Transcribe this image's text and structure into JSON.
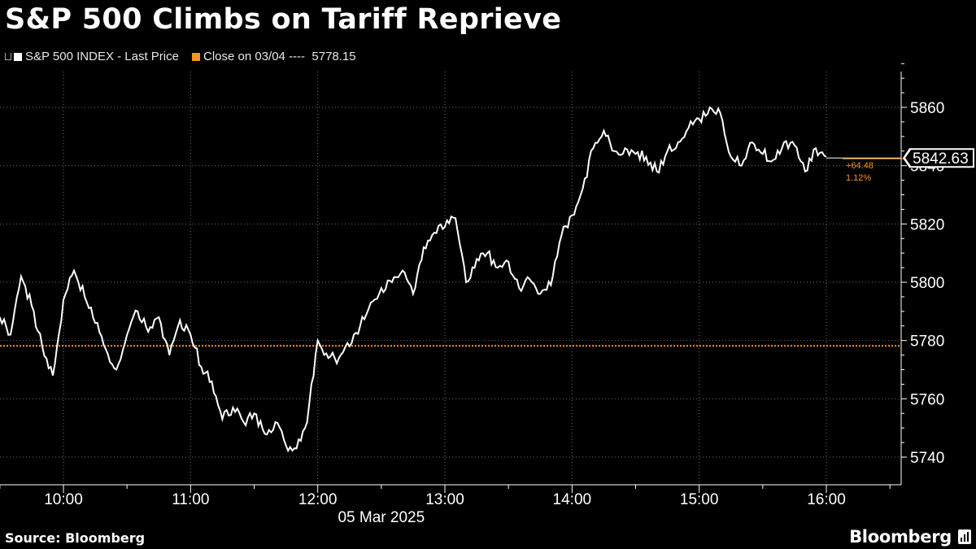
{
  "header": {
    "title": "S&P 500 Climbs on Tariff Reprieve"
  },
  "legend": {
    "series_label": "S&P 500 INDEX - Last Price",
    "close_label": "Close on 03/04",
    "close_dashes": "----",
    "close_value": "5778.15"
  },
  "footer": {
    "source": "Source: Bloomberg",
    "brand": "Bloomberg"
  },
  "colors": {
    "background": "#000000",
    "line": "#ffffff",
    "reference": "#f7941d",
    "grid": "#6e6e6e"
  },
  "chart_data": {
    "type": "line",
    "title": "S&P 500 Climbs on Tariff Reprieve",
    "date_label": "05 Mar 2025",
    "xlabel": "",
    "ylabel": "",
    "ylim": [
      5735,
      5880
    ],
    "xlim": [
      "09:30",
      "16:30"
    ],
    "y_ticks": [
      5740,
      5760,
      5780,
      5800,
      5820,
      5840,
      5860
    ],
    "x_ticks": [
      "10:00",
      "11:00",
      "12:00",
      "13:00",
      "14:00",
      "15:00",
      "16:00"
    ],
    "grid": true,
    "legend_position": "top-left",
    "reference_line": {
      "label": "Close on 03/04",
      "value": 5778.15
    },
    "last_value": {
      "value": 5842.63,
      "label": "5842.63",
      "change": "+64.48",
      "change_pct": "1.12%"
    },
    "series": [
      {
        "name": "S&P 500 INDEX - Last Price",
        "x": [
          "09:30",
          "09:35",
          "09:40",
          "09:45",
          "09:50",
          "09:55",
          "10:00",
          "10:05",
          "10:10",
          "10:15",
          "10:20",
          "10:25",
          "10:30",
          "10:35",
          "10:40",
          "10:45",
          "10:50",
          "10:55",
          "11:00",
          "11:05",
          "11:10",
          "11:15",
          "11:20",
          "11:25",
          "11:30",
          "11:35",
          "11:40",
          "11:45",
          "11:50",
          "11:55",
          "12:00",
          "12:05",
          "12:10",
          "12:15",
          "12:20",
          "12:25",
          "12:30",
          "12:35",
          "12:40",
          "12:45",
          "12:50",
          "12:55",
          "13:00",
          "13:05",
          "13:10",
          "13:15",
          "13:20",
          "13:25",
          "13:30",
          "13:35",
          "13:40",
          "13:45",
          "13:50",
          "13:55",
          "14:00",
          "14:05",
          "14:10",
          "14:15",
          "14:20",
          "14:25",
          "14:30",
          "14:35",
          "14:40",
          "14:45",
          "14:50",
          "14:55",
          "15:00",
          "15:05",
          "15:10",
          "15:15",
          "15:20",
          "15:25",
          "15:30",
          "15:35",
          "15:40",
          "15:45",
          "15:50",
          "15:55",
          "16:00"
        ],
        "y": [
          5788,
          5782,
          5802,
          5792,
          5778,
          5768,
          5794,
          5804,
          5795,
          5786,
          5777,
          5770,
          5782,
          5790,
          5783,
          5788,
          5775,
          5787,
          5782,
          5771,
          5766,
          5753,
          5757,
          5752,
          5755,
          5748,
          5752,
          5744,
          5743,
          5752,
          5780,
          5774,
          5774,
          5778,
          5785,
          5793,
          5798,
          5800,
          5804,
          5796,
          5812,
          5817,
          5819,
          5822,
          5800,
          5808,
          5810,
          5805,
          5807,
          5798,
          5801,
          5796,
          5799,
          5816,
          5823,
          5832,
          5846,
          5852,
          5845,
          5846,
          5844,
          5843,
          5838,
          5845,
          5848,
          5853,
          5856,
          5860,
          5858,
          5843,
          5840,
          5848,
          5844,
          5842,
          5848,
          5847,
          5838,
          5846,
          5843
        ]
      }
    ]
  }
}
